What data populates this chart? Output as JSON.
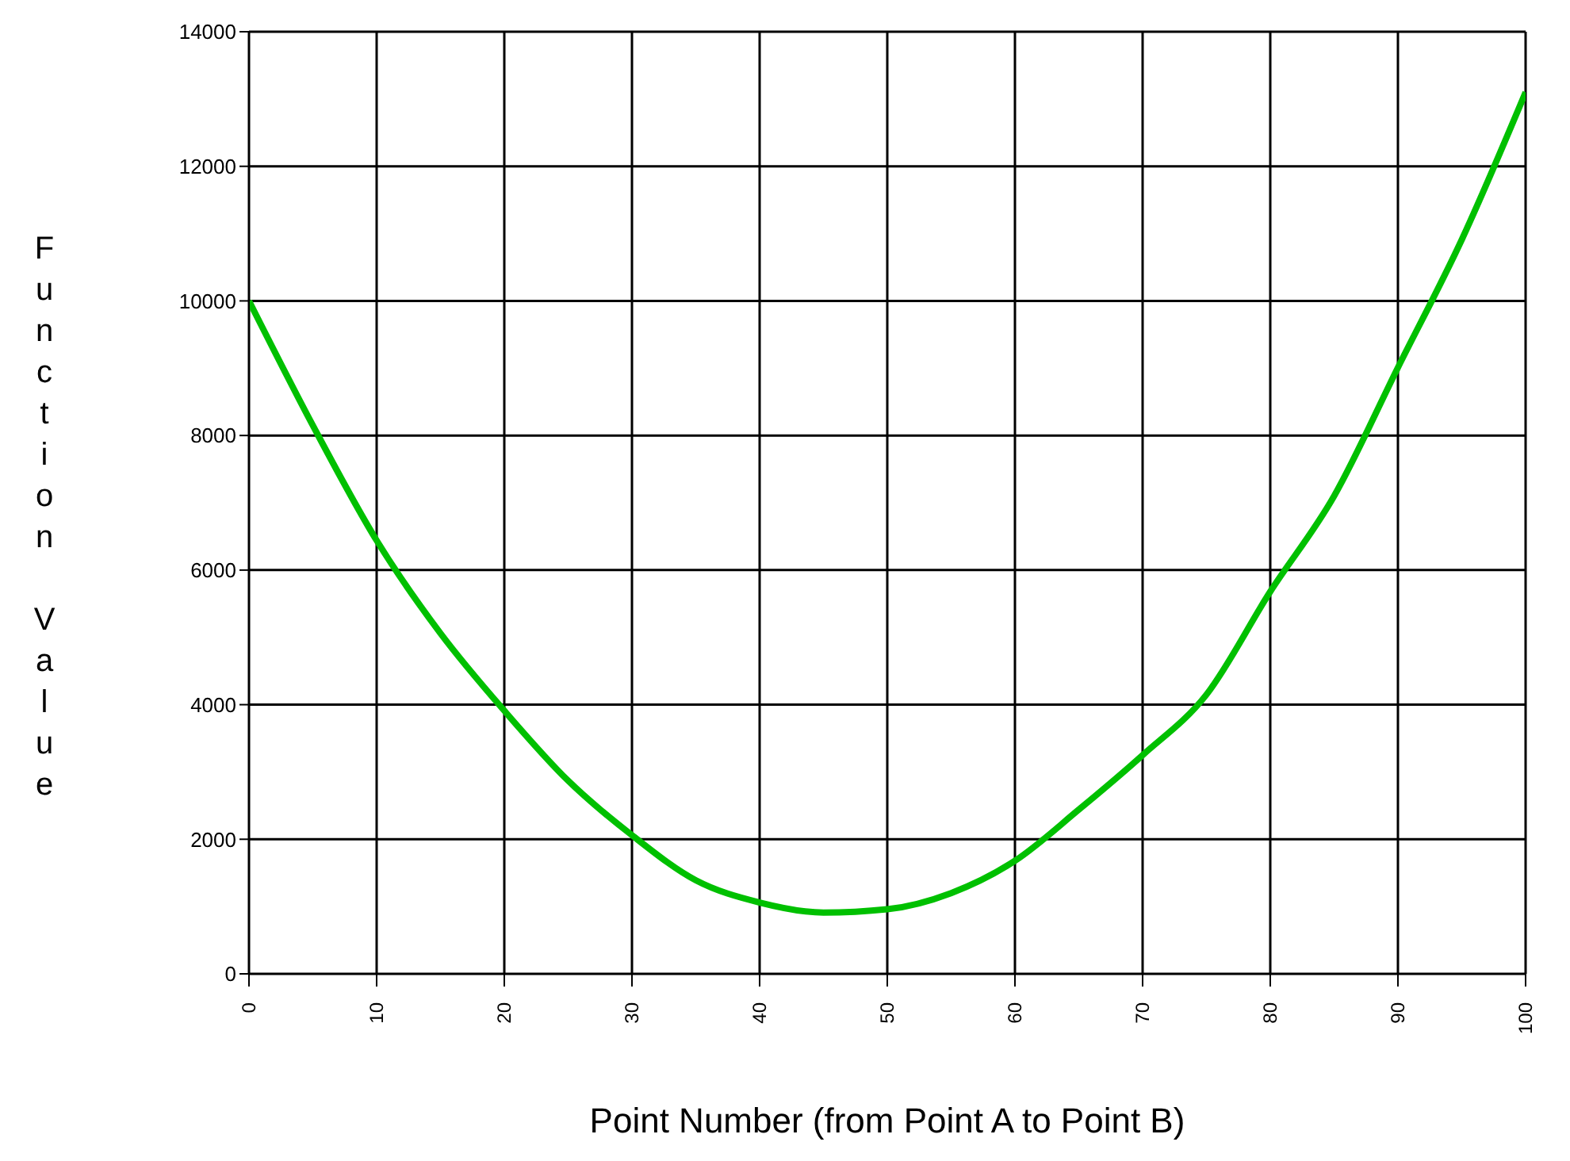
{
  "chart_data": {
    "type": "line",
    "xlabel": "Point Number (from Point A to Point B)",
    "ylabel": "Function Value",
    "x": [
      0,
      5,
      10,
      15,
      20,
      25,
      30,
      35,
      40,
      45,
      50,
      55,
      60,
      65,
      70,
      75,
      80,
      85,
      90,
      95,
      100
    ],
    "series": [
      {
        "color": "#00c000",
        "values": [
          10000,
          8150,
          6440,
          5060,
          3910,
          2870,
          2060,
          1390,
          1060,
          910,
          960,
          1200,
          1680,
          2440,
          3250,
          4150,
          5680,
          7100,
          9010,
          10910,
          13100
        ]
      }
    ],
    "xlim": [
      0,
      100
    ],
    "xticks": [
      0,
      10,
      20,
      30,
      40,
      50,
      60,
      70,
      80,
      90,
      100
    ],
    "ylim": [
      0,
      14000
    ],
    "yticks": [
      0,
      2000,
      4000,
      6000,
      8000,
      10000,
      12000,
      14000
    ],
    "grid": true,
    "marker": "none",
    "line_style": "solid",
    "legend": false
  }
}
